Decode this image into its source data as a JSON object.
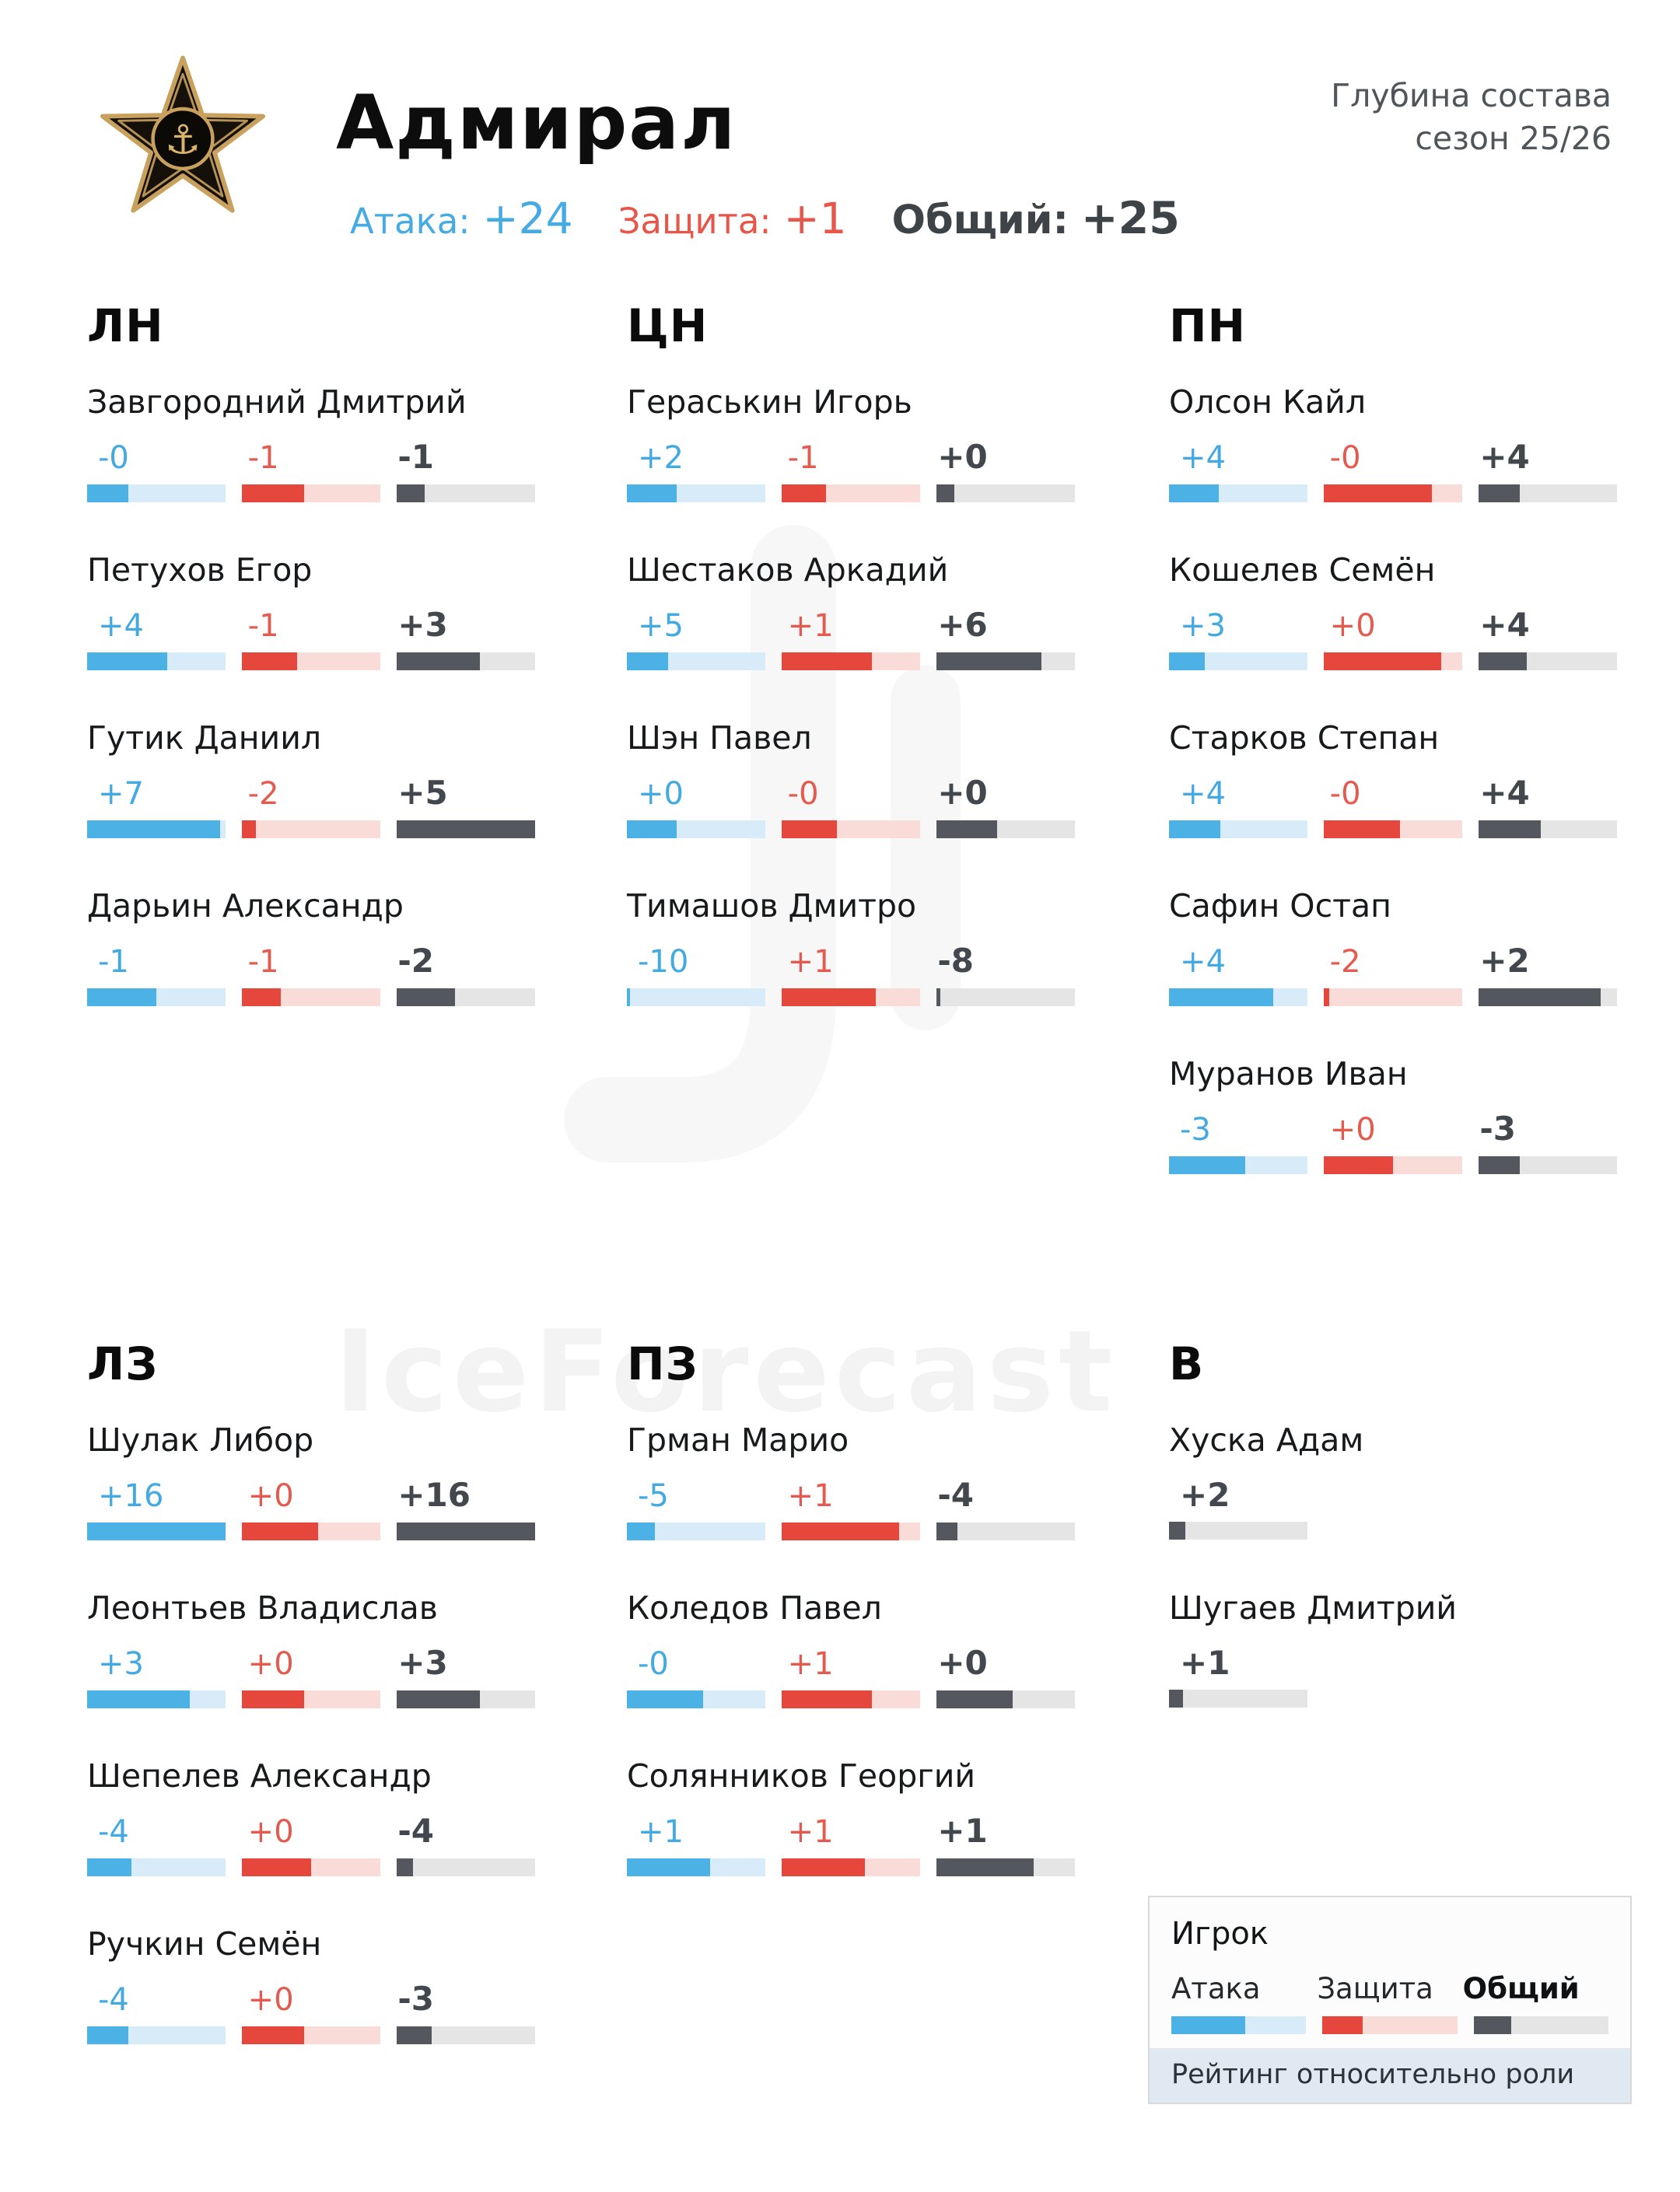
{
  "header": {
    "title": "Адмирал",
    "depth_line1": "Глубина состава",
    "depth_line2": "сезон 25/26",
    "attack_label": "Атака:",
    "attack_value": "+24",
    "defense_label": "Защита:",
    "defense_value": "+1",
    "overall_label": "Общий:",
    "overall_value": "+25"
  },
  "colors": {
    "attack": "#4cb1e4",
    "attack_pale": "#d7ecf8",
    "defense": "#e5473c",
    "defense_pale": "#f9dcd8",
    "overall": "#54585e",
    "overall_pale": "#e5e5e5"
  },
  "watermark": "IceForecast",
  "sections": [
    {
      "code": "ЛН",
      "players": [
        {
          "name": "Завгородний Дмитрий",
          "attack": "-0",
          "attack_pct": 30,
          "defense": "-1",
          "defense_pct": 45,
          "overall": "-1",
          "overall_pct": 20
        },
        {
          "name": "Петухов Егор",
          "attack": "+4",
          "attack_pct": 58,
          "defense": "-1",
          "defense_pct": 40,
          "overall": "+3",
          "overall_pct": 60
        },
        {
          "name": "Гутик Даниил",
          "attack": "+7",
          "attack_pct": 96,
          "defense": "-2",
          "defense_pct": 10,
          "overall": "+5",
          "overall_pct": 100
        },
        {
          "name": "Дарьин Александр",
          "attack": "-1",
          "attack_pct": 50,
          "defense": "-1",
          "defense_pct": 28,
          "overall": "-2",
          "overall_pct": 42
        }
      ]
    },
    {
      "code": "ЦН",
      "players": [
        {
          "name": "Гераськин Игорь",
          "attack": "+2",
          "attack_pct": 36,
          "defense": "-1",
          "defense_pct": 32,
          "overall": "+0",
          "overall_pct": 13
        },
        {
          "name": "Шестаков Аркадий",
          "attack": "+5",
          "attack_pct": 30,
          "defense": "+1",
          "defense_pct": 65,
          "overall": "+6",
          "overall_pct": 76
        },
        {
          "name": "Шэн Павел",
          "attack": "+0",
          "attack_pct": 36,
          "defense": "-0",
          "defense_pct": 40,
          "overall": "+0",
          "overall_pct": 44
        },
        {
          "name": "Тимашов Дмитро",
          "attack": "-10",
          "attack_pct": 2,
          "defense": "+1",
          "defense_pct": 68,
          "overall": "-8",
          "overall_pct": 3
        }
      ]
    },
    {
      "code": "ПН",
      "players": [
        {
          "name": "Олсон Кайл",
          "attack": "+4",
          "attack_pct": 36,
          "defense": "-0",
          "defense_pct": 78,
          "overall": "+4",
          "overall_pct": 30
        },
        {
          "name": "Кошелев Семён",
          "attack": "+3",
          "attack_pct": 26,
          "defense": "+0",
          "defense_pct": 85,
          "overall": "+4",
          "overall_pct": 35
        },
        {
          "name": "Старков Степан",
          "attack": "+4",
          "attack_pct": 37,
          "defense": "-0",
          "defense_pct": 55,
          "overall": "+4",
          "overall_pct": 45
        },
        {
          "name": "Сафин Остап",
          "attack": "+4",
          "attack_pct": 75,
          "defense": "-2",
          "defense_pct": 4,
          "overall": "+2",
          "overall_pct": 88
        },
        {
          "name": "Муранов Иван",
          "attack": "-3",
          "attack_pct": 55,
          "defense": "+0",
          "defense_pct": 50,
          "overall": "-3",
          "overall_pct": 30
        }
      ]
    },
    {
      "code": "ЛЗ",
      "players": [
        {
          "name": "Шулак Либор",
          "attack": "+16",
          "attack_pct": 100,
          "defense": "+0",
          "defense_pct": 55,
          "overall": "+16",
          "overall_pct": 100
        },
        {
          "name": "Леонтьев Владислав",
          "attack": "+3",
          "attack_pct": 74,
          "defense": "+0",
          "defense_pct": 45,
          "overall": "+3",
          "overall_pct": 60
        },
        {
          "name": "Шепелев Александр",
          "attack": "-4",
          "attack_pct": 32,
          "defense": "+0",
          "defense_pct": 50,
          "overall": "-4",
          "overall_pct": 12
        },
        {
          "name": "Ручкин Семён",
          "attack": "-4",
          "attack_pct": 30,
          "defense": "+0",
          "defense_pct": 45,
          "overall": "-3",
          "overall_pct": 25
        }
      ]
    },
    {
      "code": "ПЗ",
      "players": [
        {
          "name": "Грман Марио",
          "attack": "-5",
          "attack_pct": 20,
          "defense": "+1",
          "defense_pct": 85,
          "overall": "-4",
          "overall_pct": 15
        },
        {
          "name": "Коледов Павел",
          "attack": "-0",
          "attack_pct": 55,
          "defense": "+1",
          "defense_pct": 65,
          "overall": "+0",
          "overall_pct": 55
        },
        {
          "name": "Солянников Георгий",
          "attack": "+1",
          "attack_pct": 60,
          "defense": "+1",
          "defense_pct": 60,
          "overall": "+1",
          "overall_pct": 70
        }
      ]
    },
    {
      "code": "В",
      "players": [
        {
          "name": "Хуска Адам",
          "overall": "+2",
          "overall_pct": 12
        },
        {
          "name": "Шугаев Дмитрий",
          "overall": "+1",
          "overall_pct": 10
        }
      ]
    }
  ],
  "legend": {
    "player_label": "Игрок",
    "attack_label": "Атака",
    "defense_label": "Защита",
    "overall_label": "Общий",
    "note": "Рейтинг относительно роли",
    "attack_pct": 55,
    "defense_pct": 30,
    "overall_pct": 28
  },
  "chart_data": {
    "type": "table",
    "title": "Адмирал — глубина состава, сезон 25/26",
    "columns": [
      "Игрок",
      "Атака",
      "Защита",
      "Общий"
    ],
    "team_totals": {
      "Атака": "+24",
      "Защита": "+1",
      "Общий": "+25"
    },
    "sections": [
      {
        "role": "ЛН",
        "rows": [
          [
            "Завгородний Дмитрий",
            "-0",
            "-1",
            "-1"
          ],
          [
            "Петухов Егор",
            "+4",
            "-1",
            "+3"
          ],
          [
            "Гутик Даниил",
            "+7",
            "-2",
            "+5"
          ],
          [
            "Дарьин Александр",
            "-1",
            "-1",
            "-2"
          ]
        ]
      },
      {
        "role": "ЦН",
        "rows": [
          [
            "Гераськин Игорь",
            "+2",
            "-1",
            "+0"
          ],
          [
            "Шестаков Аркадий",
            "+5",
            "+1",
            "+6"
          ],
          [
            "Шэн Павел",
            "+0",
            "-0",
            "+0"
          ],
          [
            "Тимашов Дмитро",
            "-10",
            "+1",
            "-8"
          ]
        ]
      },
      {
        "role": "ПН",
        "rows": [
          [
            "Олсон Кайл",
            "+4",
            "-0",
            "+4"
          ],
          [
            "Кошелев Семён",
            "+3",
            "+0",
            "+4"
          ],
          [
            "Старков Степан",
            "+4",
            "-0",
            "+4"
          ],
          [
            "Сафин Остап",
            "+4",
            "-2",
            "+2"
          ],
          [
            "Муранов Иван",
            "-3",
            "+0",
            "-3"
          ]
        ]
      },
      {
        "role": "ЛЗ",
        "rows": [
          [
            "Шулак Либор",
            "+16",
            "+0",
            "+16"
          ],
          [
            "Леонтьев Владислав",
            "+3",
            "+0",
            "+3"
          ],
          [
            "Шепелев Александр",
            "-4",
            "+0",
            "-4"
          ],
          [
            "Ручкин Семён",
            "-4",
            "+0",
            "-3"
          ]
        ]
      },
      {
        "role": "ПЗ",
        "rows": [
          [
            "Грман Марио",
            "-5",
            "+1",
            "-4"
          ],
          [
            "Коледов Павел",
            "-0",
            "+1",
            "+0"
          ],
          [
            "Солянников Георгий",
            "+1",
            "+1",
            "+1"
          ]
        ]
      },
      {
        "role": "В",
        "rows": [
          [
            "Хуска Адам",
            "",
            "",
            "+2"
          ],
          [
            "Шугаев Дмитрий",
            "",
            "",
            "+1"
          ]
        ]
      }
    ]
  }
}
